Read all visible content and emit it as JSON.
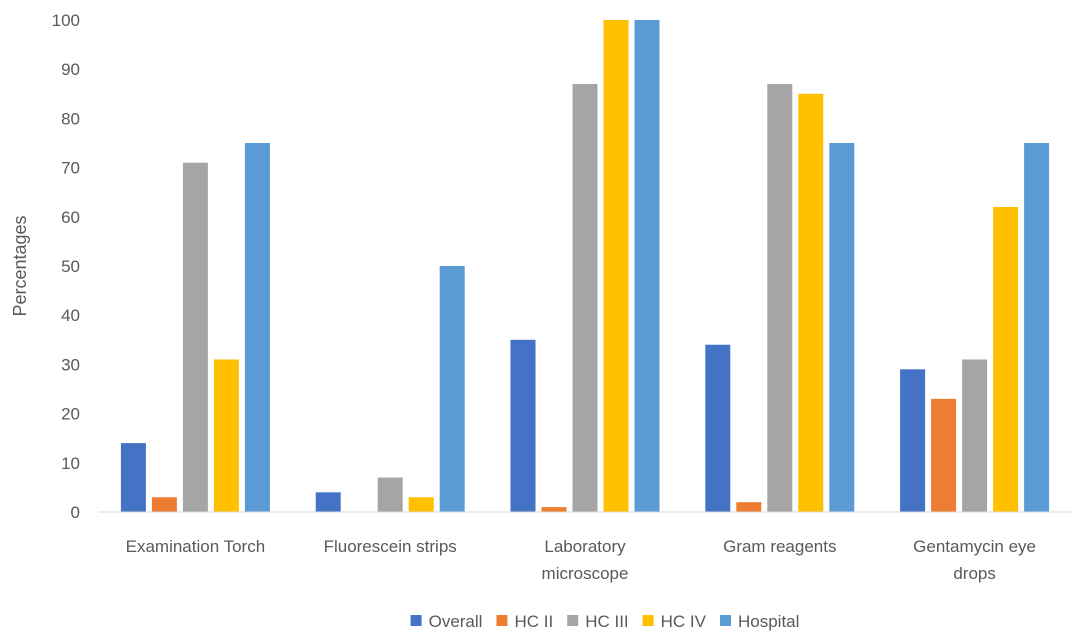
{
  "chart_data": {
    "type": "bar",
    "title": "",
    "xlabel": "",
    "ylabel": "Percentages",
    "ylim": [
      0,
      100
    ],
    "yticks": [
      0,
      10,
      20,
      30,
      40,
      50,
      60,
      70,
      80,
      90,
      100
    ],
    "grid": false,
    "legend_position": "bottom",
    "categories": [
      [
        "Examination Torch"
      ],
      [
        "Fluorescein strips"
      ],
      [
        "Laboratory",
        "microscope"
      ],
      [
        "Gram reagents"
      ],
      [
        "Gentamycin eye",
        "drops"
      ]
    ],
    "series": [
      {
        "name": "Overall",
        "color": "#4472C4",
        "values": [
          14,
          4,
          35,
          34,
          29
        ]
      },
      {
        "name": "HC II",
        "color": "#ED7D31",
        "values": [
          3,
          0,
          1,
          2,
          23
        ]
      },
      {
        "name": "HC III",
        "color": "#A5A5A5",
        "values": [
          71,
          7,
          87,
          87,
          31
        ]
      },
      {
        "name": "HC IV",
        "color": "#FFC000",
        "values": [
          31,
          3,
          100,
          85,
          62
        ]
      },
      {
        "name": "Hospital",
        "color": "#5B9BD5",
        "values": [
          75,
          50,
          100,
          75,
          75
        ]
      }
    ]
  }
}
